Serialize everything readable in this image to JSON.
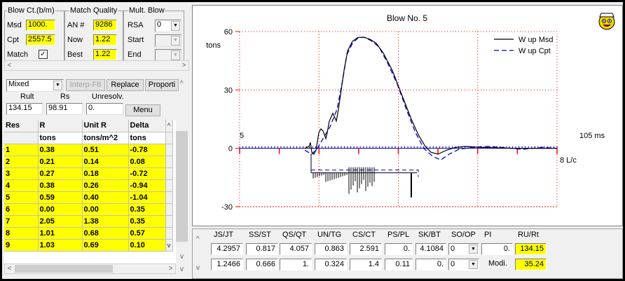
{
  "blow_ct": {
    "title": "Blow Ct.(b/m)",
    "msd_label": "Msd",
    "msd_value": "1000.",
    "cpt_label": "Cpt",
    "cpt_value": "2557.5",
    "match_label": "Match",
    "match_check": "✓"
  },
  "match_quality": {
    "title": "Match Quality",
    "an_label": "AN #",
    "an_value": "9286",
    "now_label": "Now",
    "now_value": "1.22",
    "best_label": "Best",
    "best_value": "1.22"
  },
  "mult_blow": {
    "title": "Mult. Blow",
    "rsa_label": "RSA",
    "rsa_value": "0",
    "start_label": "Start",
    "end_label": "End"
  },
  "controls": {
    "mode": "Mixed",
    "interp_label": "Interp-F8",
    "replace_label": "Replace",
    "proport_label": "Proporti",
    "rult_label": "Rult",
    "rs_label": "Rs",
    "unresolv_label": "Unresolv.",
    "rult_value": "134.15",
    "rs_value": "98.91",
    "unresolv_value": "0.",
    "menu_label": "Menu"
  },
  "table": {
    "headers": [
      "Res",
      "R",
      "Unit R",
      "Delta"
    ],
    "units": [
      "",
      "tons",
      "tons/m^2",
      "tons"
    ],
    "rows": [
      [
        "1",
        "0.38",
        "0.51",
        "-0.78"
      ],
      [
        "2",
        "0.21",
        "0.14",
        "0.08"
      ],
      [
        "3",
        "0.27",
        "0.18",
        "-0.72"
      ],
      [
        "4",
        "0.38",
        "0.26",
        "-0.94"
      ],
      [
        "5",
        "0.59",
        "0.40",
        "-1.04"
      ],
      [
        "6",
        "0.00",
        "0.00",
        "0.35"
      ],
      [
        "7",
        "2.05",
        "1.38",
        "0.35"
      ],
      [
        "8",
        "1.01",
        "0.68",
        "0.57"
      ],
      [
        "9",
        "1.03",
        "0.69",
        "0.10"
      ]
    ]
  },
  "scroll": {
    "up": "^",
    "down": "v",
    "left": "<",
    "right": ">"
  },
  "chart_data": {
    "type": "line",
    "title": "Blow No. 5",
    "ylabel": "tons",
    "ylim": [
      -30,
      60
    ],
    "yticks": [
      60,
      30,
      0,
      -30
    ],
    "x_start_label": "5",
    "x_end_label": "105 ms",
    "x_length_label": "8 L/c",
    "grid": true,
    "legend_position": "top-right",
    "series": [
      {
        "name": "W up Msd",
        "color": "#000000",
        "style": "solid"
      },
      {
        "name": "W up Cpt",
        "color": "#0000cc",
        "style": "dashed"
      }
    ]
  },
  "stats": {
    "headers": [
      "JS/JT",
      "SS/ST",
      "QS/QT",
      "UN/TG",
      "CS/CT",
      "PS/PL",
      "SK/BT",
      "SO/OP",
      "PI",
      "RU/Rt"
    ],
    "row1": [
      "4.2957",
      "0.817",
      "4.057",
      "0.863",
      "2.591",
      "0.",
      "4.1084",
      "0",
      "0.",
      "134.15"
    ],
    "row2": [
      "1.2466",
      "0.666",
      "1.",
      "0.324",
      "1.4",
      "0.11",
      "0.",
      "0",
      "Modi.",
      "35.24"
    ]
  },
  "colors": {
    "highlight": "#ffff00",
    "grid": "#ff0000",
    "msd": "#000000",
    "cpt": "#0000cc"
  }
}
